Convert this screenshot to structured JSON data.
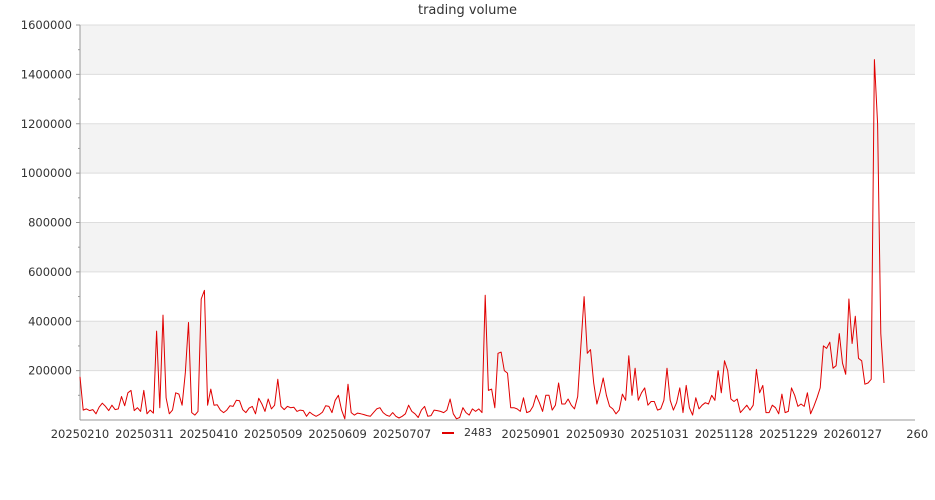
{
  "chart_data": {
    "type": "line",
    "title": "trading volume",
    "xlabel": "",
    "ylabel": "",
    "ylim": [
      0,
      1600000
    ],
    "yticks": [
      "1600000",
      "1400000",
      "1200000",
      "1000000",
      "800000",
      "600000",
      "400000",
      "200000"
    ],
    "xticks": [
      "20250210",
      "20250311",
      "20250410",
      "20250509",
      "20250609",
      "20250707",
      "20250901",
      "20250930",
      "20251031",
      "20251128",
      "20251229",
      "20260127",
      "260"
    ],
    "legend_position": "bottom",
    "grid": true,
    "series": [
      {
        "name": "2483",
        "color": "#e00000",
        "values": [
          175000,
          40000,
          45000,
          38000,
          42000,
          25000,
          52000,
          68000,
          55000,
          38000,
          60000,
          42000,
          45000,
          95000,
          58000,
          110000,
          120000,
          38000,
          50000,
          35000,
          120000,
          25000,
          40000,
          28000,
          360000,
          50000,
          425000,
          90000,
          25000,
          40000,
          110000,
          105000,
          60000,
          190000,
          395000,
          30000,
          20000,
          35000,
          490000,
          525000,
          60000,
          125000,
          60000,
          62000,
          40000,
          30000,
          40000,
          58000,
          55000,
          80000,
          78000,
          42000,
          30000,
          48000,
          55000,
          25000,
          88000,
          65000,
          35000,
          85000,
          45000,
          60000,
          165000,
          55000,
          42000,
          55000,
          50000,
          52000,
          35000,
          40000,
          38000,
          15000,
          32000,
          22000,
          15000,
          22000,
          32000,
          58000,
          55000,
          30000,
          80000,
          100000,
          40000,
          5000,
          145000,
          30000,
          20000,
          28000,
          25000,
          22000,
          18000,
          15000,
          30000,
          45000,
          50000,
          30000,
          20000,
          15000,
          30000,
          15000,
          8000,
          15000,
          25000,
          60000,
          35000,
          25000,
          10000,
          40000,
          55000,
          15000,
          18000,
          40000,
          38000,
          35000,
          30000,
          40000,
          85000,
          25000,
          5000,
          10000,
          50000,
          30000,
          20000,
          45000,
          35000,
          45000,
          30000,
          505000,
          120000,
          125000,
          50000,
          270000,
          275000,
          200000,
          190000,
          50000,
          50000,
          45000,
          35000,
          90000,
          30000,
          35000,
          55000,
          100000,
          70000,
          35000,
          100000,
          100000,
          40000,
          60000,
          150000,
          65000,
          65000,
          85000,
          60000,
          45000,
          95000,
          300000,
          500000,
          270000,
          285000,
          150000,
          65000,
          110000,
          170000,
          100000,
          55000,
          45000,
          25000,
          40000,
          105000,
          80000,
          260000,
          100000,
          210000,
          80000,
          110000,
          130000,
          60000,
          75000,
          75000,
          40000,
          45000,
          80000,
          210000,
          80000,
          40000,
          70000,
          130000,
          30000,
          140000,
          50000,
          20000,
          90000,
          45000,
          60000,
          70000,
          65000,
          100000,
          80000,
          200000,
          110000,
          240000,
          200000,
          85000,
          75000,
          85000,
          30000,
          45000,
          60000,
          40000,
          60000,
          205000,
          110000,
          140000,
          30000,
          30000,
          60000,
          50000,
          25000,
          105000,
          30000,
          35000,
          130000,
          100000,
          55000,
          65000,
          55000,
          110000,
          25000,
          55000,
          90000,
          130000,
          300000,
          290000,
          315000,
          210000,
          220000,
          350000,
          230000,
          185000,
          490000,
          310000,
          420000,
          250000,
          240000,
          145000,
          150000,
          165000,
          1460000,
          1200000,
          350000,
          150000
        ]
      }
    ]
  }
}
